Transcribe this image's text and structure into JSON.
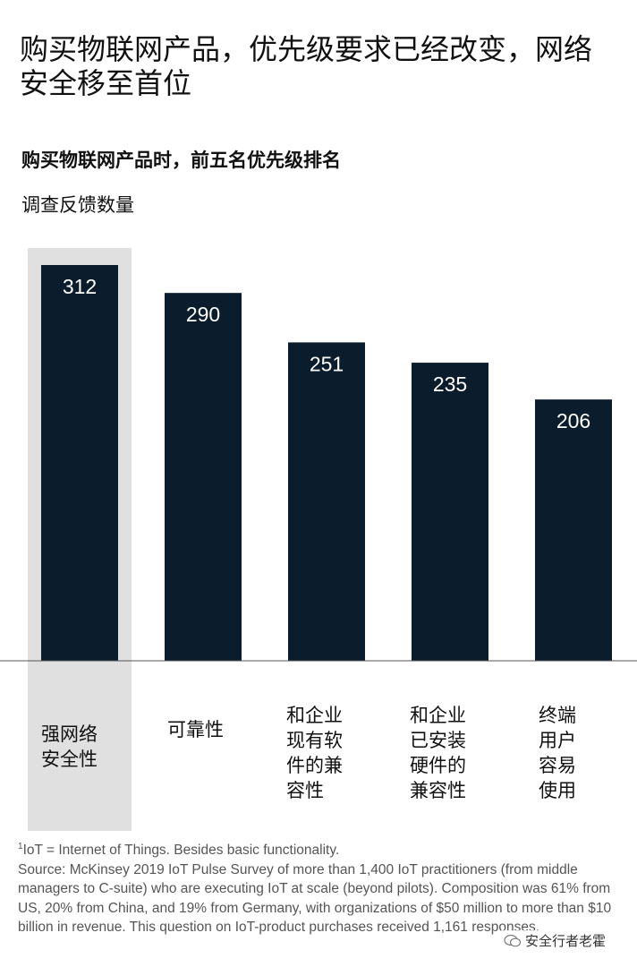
{
  "headline": "购买物联网产品，优先级要求已经改变，网络安全移至首位",
  "chart_data": {
    "type": "bar",
    "title": "购买物联网产品时，前五名优先级排名",
    "ylabel": "调查反馈数量",
    "xlabel": "",
    "categories": [
      "强网络\n安全性",
      "可靠性",
      "和企业\n现有软\n件的兼\n容性",
      "和企业\n已安装\n硬件的\n兼容性",
      "终端\n用户\n容易\n使用"
    ],
    "values": [
      312,
      290,
      251,
      235,
      206
    ],
    "ylim": [
      0,
      312
    ],
    "highlight_index": 0,
    "colors": {
      "bar": "#0b1c2d",
      "highlight_bg": "#e0e0e0",
      "value_text": "#ffffff",
      "axis": "#555555"
    }
  },
  "footnote": {
    "marker": "1",
    "line1": "IoT = Internet of Things. Besides basic functionality.",
    "source": "Source: McKinsey 2019 IoT Pulse Survey of more than 1,400 IoT practitioners (from middle managers to C-suite) who are executing IoT at scale (beyond pilots). Composition was 61% from US, 20% from China, and 19% from Germany, with organizations of $50 million to more than $10 billion in revenue. This question on IoT-product purchases received 1,161 responses."
  },
  "watermark": {
    "text": "安全行者老霍",
    "icon": "wechat-icon"
  }
}
